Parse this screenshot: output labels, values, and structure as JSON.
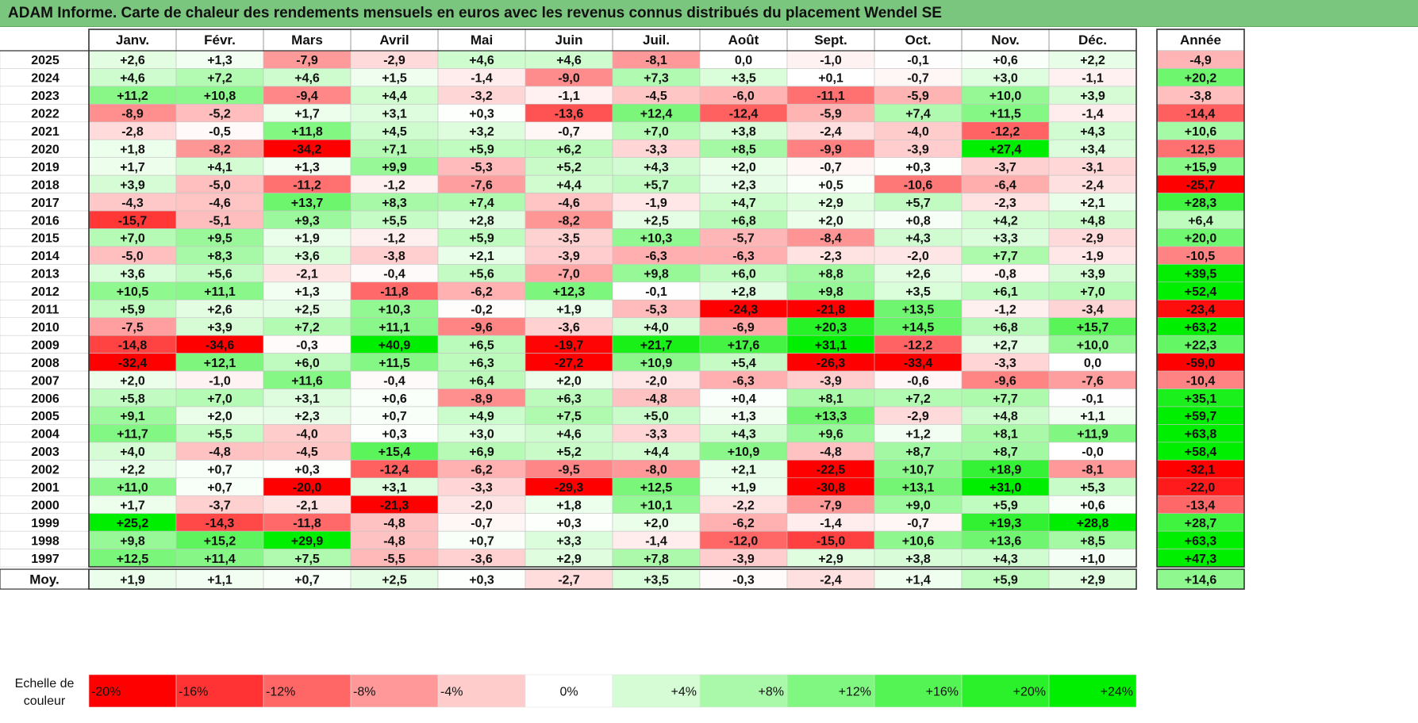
{
  "page_title": "ADAM Informe. Carte de chaleur des rendements mensuels en euros avec les revenus connus distribués du placement Wendel SE",
  "chart_data": {
    "type": "heatmap",
    "title": "ADAM Informe. Carte de chaleur des rendements mensuels en euros avec les revenus connus distribués du placement Wendel SE",
    "columns": [
      "Janv.",
      "Févr.",
      "Mars",
      "Avril",
      "Mai",
      "Juin",
      "Juil.",
      "Août",
      "Sept.",
      "Oct.",
      "Nov.",
      "Déc."
    ],
    "annual_label": "Année",
    "average_label": "Moy.",
    "rows": [
      {
        "year": "2025",
        "values": [
          "+2,6",
          "+1,3",
          "-7,9",
          "-2,9",
          "+4,6",
          "+4,6",
          "-8,1",
          "0,0",
          "-1,0",
          "-0,1",
          "+0,6",
          "+2,2"
        ],
        "annual": "-4,9"
      },
      {
        "year": "2024",
        "values": [
          "+4,6",
          "+7,2",
          "+4,6",
          "+1,5",
          "-1,4",
          "-9,0",
          "+7,3",
          "+3,5",
          "+0,1",
          "-0,7",
          "+3,0",
          "-1,1"
        ],
        "annual": "+20,2"
      },
      {
        "year": "2023",
        "values": [
          "+11,2",
          "+10,8",
          "-9,4",
          "+4,4",
          "-3,2",
          "-1,1",
          "-4,5",
          "-6,0",
          "-11,1",
          "-5,9",
          "+10,0",
          "+3,9"
        ],
        "annual": "-3,8"
      },
      {
        "year": "2022",
        "values": [
          "-8,9",
          "-5,2",
          "+1,7",
          "+3,1",
          "+0,3",
          "-13,6",
          "+12,4",
          "-12,4",
          "-5,9",
          "+7,4",
          "+11,5",
          "-1,4"
        ],
        "annual": "-14,4"
      },
      {
        "year": "2021",
        "values": [
          "-2,8",
          "-0,5",
          "+11,8",
          "+4,5",
          "+3,2",
          "-0,7",
          "+7,0",
          "+3,8",
          "-2,4",
          "-4,0",
          "-12,2",
          "+4,3"
        ],
        "annual": "+10,6"
      },
      {
        "year": "2020",
        "values": [
          "+1,8",
          "-8,2",
          "-34,2",
          "+7,1",
          "+5,9",
          "+6,2",
          "-3,3",
          "+8,5",
          "-9,9",
          "-3,9",
          "+27,4",
          "+3,4"
        ],
        "annual": "-12,5"
      },
      {
        "year": "2019",
        "values": [
          "+1,7",
          "+4,1",
          "+1,3",
          "+9,9",
          "-5,3",
          "+5,2",
          "+4,3",
          "+2,0",
          "-0,7",
          "+0,3",
          "-3,7",
          "-3,1"
        ],
        "annual": "+15,9"
      },
      {
        "year": "2018",
        "values": [
          "+3,9",
          "-5,0",
          "-11,2",
          "-1,2",
          "-7,6",
          "+4,4",
          "+5,7",
          "+2,3",
          "+0,5",
          "-10,6",
          "-6,4",
          "-2,4"
        ],
        "annual": "-25,7"
      },
      {
        "year": "2017",
        "values": [
          "-4,3",
          "-4,6",
          "+13,7",
          "+8,3",
          "+7,4",
          "-4,6",
          "-1,9",
          "+4,7",
          "+2,9",
          "+5,7",
          "-2,3",
          "+2,1"
        ],
        "annual": "+28,3"
      },
      {
        "year": "2016",
        "values": [
          "-15,7",
          "-5,1",
          "+9,3",
          "+5,5",
          "+2,8",
          "-8,2",
          "+2,5",
          "+6,8",
          "+2,0",
          "+0,8",
          "+4,2",
          "+4,8"
        ],
        "annual": "+6,4"
      },
      {
        "year": "2015",
        "values": [
          "+7,0",
          "+9,5",
          "+1,9",
          "-1,2",
          "+5,9",
          "-3,5",
          "+10,3",
          "-5,7",
          "-8,4",
          "+4,3",
          "+3,3",
          "-2,9"
        ],
        "annual": "+20,0"
      },
      {
        "year": "2014",
        "values": [
          "-5,0",
          "+8,3",
          "+3,6",
          "-3,8",
          "+2,1",
          "-3,9",
          "-6,3",
          "-6,3",
          "-2,3",
          "-2,0",
          "+7,7",
          "-1,9"
        ],
        "annual": "-10,5"
      },
      {
        "year": "2013",
        "values": [
          "+3,6",
          "+5,6",
          "-2,1",
          "-0,4",
          "+5,6",
          "-7,0",
          "+9,8",
          "+6,0",
          "+8,8",
          "+2,6",
          "-0,8",
          "+3,9"
        ],
        "annual": "+39,5"
      },
      {
        "year": "2012",
        "values": [
          "+10,5",
          "+11,1",
          "+1,3",
          "-11,8",
          "-6,2",
          "+12,3",
          "-0,1",
          "+2,8",
          "+9,8",
          "+3,5",
          "+6,1",
          "+7,0"
        ],
        "annual": "+52,4"
      },
      {
        "year": "2011",
        "values": [
          "+5,9",
          "+2,6",
          "+2,5",
          "+10,3",
          "-0,2",
          "+1,9",
          "-5,3",
          "-24,3",
          "-21,8",
          "+13,5",
          "-1,2",
          "-3,4"
        ],
        "annual": "-23,4"
      },
      {
        "year": "2010",
        "values": [
          "-7,5",
          "+3,9",
          "+7,2",
          "+11,1",
          "-9,6",
          "-3,6",
          "+4,0",
          "-6,9",
          "+20,3",
          "+14,5",
          "+6,8",
          "+15,7"
        ],
        "annual": "+63,2"
      },
      {
        "year": "2009",
        "values": [
          "-14,8",
          "-34,6",
          "-0,3",
          "+40,9",
          "+6,5",
          "-19,7",
          "+21,7",
          "+17,6",
          "+31,1",
          "-12,2",
          "+2,7",
          "+10,0"
        ],
        "annual": "+22,3"
      },
      {
        "year": "2008",
        "values": [
          "-32,4",
          "+12,1",
          "+6,0",
          "+11,5",
          "+6,3",
          "-27,2",
          "+10,9",
          "+5,4",
          "-26,3",
          "-33,4",
          "-3,3",
          "0,0"
        ],
        "annual": "-59,0"
      },
      {
        "year": "2007",
        "values": [
          "+2,0",
          "-1,0",
          "+11,6",
          "-0,4",
          "+6,4",
          "+2,0",
          "-2,0",
          "-6,3",
          "-3,9",
          "-0,6",
          "-9,6",
          "-7,6"
        ],
        "annual": "-10,4"
      },
      {
        "year": "2006",
        "values": [
          "+5,8",
          "+7,0",
          "+3,1",
          "+0,6",
          "-8,9",
          "+6,3",
          "-4,8",
          "+0,4",
          "+8,1",
          "+7,2",
          "+7,7",
          "-0,1"
        ],
        "annual": "+35,1"
      },
      {
        "year": "2005",
        "values": [
          "+9,1",
          "+2,0",
          "+2,3",
          "+0,7",
          "+4,9",
          "+7,5",
          "+5,0",
          "+1,3",
          "+13,3",
          "-2,9",
          "+4,8",
          "+1,1"
        ],
        "annual": "+59,7"
      },
      {
        "year": "2004",
        "values": [
          "+11,7",
          "+5,5",
          "-4,0",
          "+0,3",
          "+3,0",
          "+4,6",
          "-3,3",
          "+4,3",
          "+9,6",
          "+1,2",
          "+8,1",
          "+11,9"
        ],
        "annual": "+63,8"
      },
      {
        "year": "2003",
        "values": [
          "+4,0",
          "-4,8",
          "-4,5",
          "+15,4",
          "+6,9",
          "+5,2",
          "+4,4",
          "+10,9",
          "-4,8",
          "+8,7",
          "+8,7",
          "-0,0"
        ],
        "annual": "+58,4"
      },
      {
        "year": "2002",
        "values": [
          "+2,2",
          "+0,7",
          "+0,3",
          "-12,4",
          "-6,2",
          "-9,5",
          "-8,0",
          "+2,1",
          "-22,5",
          "+10,7",
          "+18,9",
          "-8,1"
        ],
        "annual": "-32,1"
      },
      {
        "year": "2001",
        "values": [
          "+11,0",
          "+0,7",
          "-20,0",
          "+3,1",
          "-3,3",
          "-29,3",
          "+12,5",
          "+1,9",
          "-30,8",
          "+13,1",
          "+31,0",
          "+5,3"
        ],
        "annual": "-22,0"
      },
      {
        "year": "2000",
        "values": [
          "+1,7",
          "-3,7",
          "-2,1",
          "-21,3",
          "-2,0",
          "+1,8",
          "+10,1",
          "-2,2",
          "-7,9",
          "+9,0",
          "+5,9",
          "+0,6"
        ],
        "annual": "-13,4"
      },
      {
        "year": "1999",
        "values": [
          "+25,2",
          "-14,3",
          "-11,8",
          "-4,8",
          "-0,7",
          "+0,3",
          "+2,0",
          "-6,2",
          "-1,4",
          "-0,7",
          "+19,3",
          "+28,8"
        ],
        "annual": "+28,7"
      },
      {
        "year": "1998",
        "values": [
          "+9,8",
          "+15,2",
          "+29,9",
          "-4,8",
          "+0,7",
          "+3,3",
          "-1,4",
          "-12,0",
          "-15,0",
          "+10,6",
          "+13,6",
          "+8,5"
        ],
        "annual": "+63,3"
      },
      {
        "year": "1997",
        "values": [
          "+12,5",
          "+11,4",
          "+7,5",
          "-5,5",
          "-3,6",
          "+2,9",
          "+7,8",
          "-3,9",
          "+2,9",
          "+3,8",
          "+4,3",
          "+1,0"
        ],
        "annual": "+47,3"
      }
    ],
    "average": {
      "values": [
        "+1,9",
        "+1,1",
        "+0,7",
        "+2,5",
        "+0,3",
        "-2,7",
        "+3,5",
        "-0,3",
        "-2,4",
        "+1,4",
        "+5,9",
        "+2,9"
      ],
      "annual": "+14,6"
    },
    "scale_label": [
      "Echelle de",
      "couleur"
    ],
    "scale": [
      {
        "label": "-20%",
        "value": -20
      },
      {
        "label": "-16%",
        "value": -16
      },
      {
        "label": "-12%",
        "value": -12
      },
      {
        "label": "-8%",
        "value": -8
      },
      {
        "label": "-4%",
        "value": -4
      },
      {
        "label": "0%",
        "value": 0
      },
      {
        "label": "+4%",
        "value": 4
      },
      {
        "label": "+8%",
        "value": 8
      },
      {
        "label": "+12%",
        "value": 12
      },
      {
        "label": "+16%",
        "value": 16
      },
      {
        "label": "+20%",
        "value": 20
      },
      {
        "label": "+24%",
        "value": 24
      }
    ]
  },
  "colors": {
    "title_bar": "#7bc67e",
    "negative_max": "#ff0000",
    "neutral": "#ffffff",
    "positive_max": "#00ee00"
  }
}
